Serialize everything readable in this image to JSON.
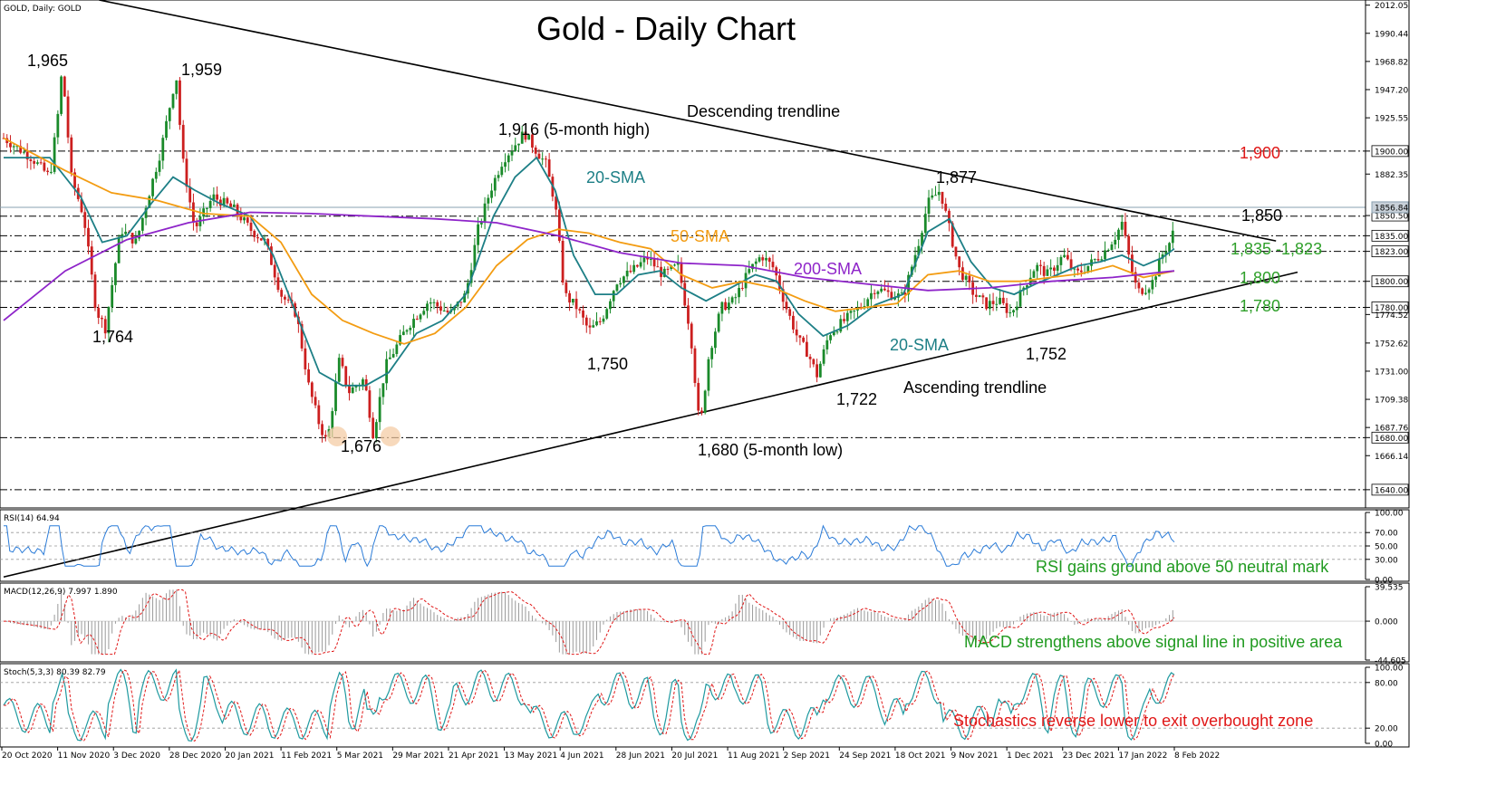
{
  "header": {
    "symbol_label": "GOLD, Daily:  GOLD",
    "title": "Gold - Daily Chart"
  },
  "chart_data": {
    "type": "candlestick",
    "title": "Gold - Daily Chart",
    "instrument": "GOLD",
    "timeframe": "Daily",
    "price_axis": {
      "ylim": [
        1626,
        2016
      ],
      "ticks": [
        "2012.05",
        "1990.44",
        "1968.82",
        "1947.20",
        "1925.55",
        "1900.00",
        "1882.35",
        "1850.50",
        "1835.00",
        "1823.00",
        "1800.00",
        "1780.00",
        "1774.52",
        "1752.62",
        "1731.00",
        "1709.38",
        "1687.76",
        "1680.00",
        "1666.14",
        "1640.00"
      ],
      "highlighted": [
        "1900.00",
        "1850.50",
        "1835.00",
        "1823.00",
        "1800.00",
        "1780.00",
        "1680.00",
        "1640.00"
      ],
      "current_price": "1856.84"
    },
    "x_axis_labels": [
      "20 Oct 2020",
      "11 Nov 2020",
      "3 Dec 2020",
      "28 Dec 2020",
      "20 Jan 2021",
      "11 Feb 2021",
      "5 Mar 2021",
      "29 Mar 2021",
      "21 Apr 2021",
      "13 May 2021",
      "4 Jun 2021",
      "28 Jun 2021",
      "20 Jul 2021",
      "11 Aug 2021",
      "2 Sep 2021",
      "24 Sep 2021",
      "18 Oct 2021",
      "9 Nov 2021",
      "1 Dec 2021",
      "23 Dec 2021",
      "17 Jan 2022",
      "8 Feb 2022"
    ],
    "price_path": [
      {
        "x": 0,
        "y": 1910
      },
      {
        "x": 18,
        "y": 1895
      },
      {
        "x": 30,
        "y": 1880
      },
      {
        "x": 36,
        "y": 1935
      },
      {
        "x": 38,
        "y": 1965
      },
      {
        "x": 44,
        "y": 1880
      },
      {
        "x": 52,
        "y": 1850
      },
      {
        "x": 60,
        "y": 1778
      },
      {
        "x": 66,
        "y": 1764
      },
      {
        "x": 76,
        "y": 1840
      },
      {
        "x": 86,
        "y": 1830
      },
      {
        "x": 95,
        "y": 1870
      },
      {
        "x": 102,
        "y": 1900
      },
      {
        "x": 112,
        "y": 1959
      },
      {
        "x": 116,
        "y": 1895
      },
      {
        "x": 124,
        "y": 1840
      },
      {
        "x": 136,
        "y": 1865
      },
      {
        "x": 150,
        "y": 1855
      },
      {
        "x": 160,
        "y": 1840
      },
      {
        "x": 170,
        "y": 1830
      },
      {
        "x": 180,
        "y": 1790
      },
      {
        "x": 190,
        "y": 1775
      },
      {
        "x": 198,
        "y": 1720
      },
      {
        "x": 205,
        "y": 1690
      },
      {
        "x": 210,
        "y": 1676
      },
      {
        "x": 218,
        "y": 1740
      },
      {
        "x": 224,
        "y": 1715
      },
      {
        "x": 234,
        "y": 1725
      },
      {
        "x": 240,
        "y": 1682
      },
      {
        "x": 248,
        "y": 1735
      },
      {
        "x": 262,
        "y": 1765
      },
      {
        "x": 276,
        "y": 1785
      },
      {
        "x": 290,
        "y": 1775
      },
      {
        "x": 300,
        "y": 1790
      },
      {
        "x": 308,
        "y": 1840
      },
      {
        "x": 316,
        "y": 1870
      },
      {
        "x": 324,
        "y": 1893
      },
      {
        "x": 332,
        "y": 1905
      },
      {
        "x": 338,
        "y": 1914
      },
      {
        "x": 346,
        "y": 1900
      },
      {
        "x": 352,
        "y": 1890
      },
      {
        "x": 358,
        "y": 1860
      },
      {
        "x": 364,
        "y": 1790
      },
      {
        "x": 372,
        "y": 1780
      },
      {
        "x": 380,
        "y": 1762
      },
      {
        "x": 388,
        "y": 1770
      },
      {
        "x": 398,
        "y": 1800
      },
      {
        "x": 408,
        "y": 1808
      },
      {
        "x": 418,
        "y": 1818
      },
      {
        "x": 428,
        "y": 1805
      },
      {
        "x": 438,
        "y": 1812
      },
      {
        "x": 446,
        "y": 1760
      },
      {
        "x": 452,
        "y": 1685
      },
      {
        "x": 458,
        "y": 1745
      },
      {
        "x": 466,
        "y": 1780
      },
      {
        "x": 474,
        "y": 1785
      },
      {
        "x": 484,
        "y": 1808
      },
      {
        "x": 492,
        "y": 1820
      },
      {
        "x": 500,
        "y": 1810
      },
      {
        "x": 508,
        "y": 1780
      },
      {
        "x": 516,
        "y": 1755
      },
      {
        "x": 522,
        "y": 1745
      },
      {
        "x": 528,
        "y": 1728
      },
      {
        "x": 536,
        "y": 1760
      },
      {
        "x": 546,
        "y": 1770
      },
      {
        "x": 556,
        "y": 1780
      },
      {
        "x": 566,
        "y": 1795
      },
      {
        "x": 576,
        "y": 1790
      },
      {
        "x": 584,
        "y": 1788
      },
      {
        "x": 594,
        "y": 1830
      },
      {
        "x": 600,
        "y": 1860
      },
      {
        "x": 608,
        "y": 1870
      },
      {
        "x": 614,
        "y": 1840
      },
      {
        "x": 620,
        "y": 1810
      },
      {
        "x": 630,
        "y": 1790
      },
      {
        "x": 638,
        "y": 1782
      },
      {
        "x": 646,
        "y": 1785
      },
      {
        "x": 654,
        "y": 1775
      },
      {
        "x": 662,
        "y": 1795
      },
      {
        "x": 670,
        "y": 1812
      },
      {
        "x": 678,
        "y": 1805
      },
      {
        "x": 688,
        "y": 1820
      },
      {
        "x": 696,
        "y": 1805
      },
      {
        "x": 704,
        "y": 1812
      },
      {
        "x": 714,
        "y": 1822
      },
      {
        "x": 722,
        "y": 1835
      },
      {
        "x": 726,
        "y": 1845
      },
      {
        "x": 732,
        "y": 1810
      },
      {
        "x": 736,
        "y": 1792
      },
      {
        "x": 742,
        "y": 1795
      },
      {
        "x": 746,
        "y": 1800
      },
      {
        "x": 752,
        "y": 1820
      },
      {
        "x": 757,
        "y": 1830
      },
      {
        "x": 760,
        "y": 1840
      }
    ],
    "series": [
      {
        "name": "20-SMA",
        "color": "#1d7f86",
        "points": [
          {
            "x": 0,
            "y": 1895
          },
          {
            "x": 30,
            "y": 1895
          },
          {
            "x": 50,
            "y": 1865
          },
          {
            "x": 64,
            "y": 1830
          },
          {
            "x": 80,
            "y": 1835
          },
          {
            "x": 96,
            "y": 1860
          },
          {
            "x": 110,
            "y": 1880
          },
          {
            "x": 124,
            "y": 1870
          },
          {
            "x": 140,
            "y": 1860
          },
          {
            "x": 160,
            "y": 1850
          },
          {
            "x": 175,
            "y": 1820
          },
          {
            "x": 190,
            "y": 1775
          },
          {
            "x": 205,
            "y": 1730
          },
          {
            "x": 220,
            "y": 1720
          },
          {
            "x": 235,
            "y": 1720
          },
          {
            "x": 250,
            "y": 1730
          },
          {
            "x": 268,
            "y": 1760
          },
          {
            "x": 285,
            "y": 1770
          },
          {
            "x": 300,
            "y": 1790
          },
          {
            "x": 318,
            "y": 1850
          },
          {
            "x": 332,
            "y": 1880
          },
          {
            "x": 346,
            "y": 1895
          },
          {
            "x": 358,
            "y": 1870
          },
          {
            "x": 370,
            "y": 1820
          },
          {
            "x": 384,
            "y": 1790
          },
          {
            "x": 398,
            "y": 1790
          },
          {
            "x": 412,
            "y": 1805
          },
          {
            "x": 426,
            "y": 1808
          },
          {
            "x": 440,
            "y": 1795
          },
          {
            "x": 456,
            "y": 1785
          },
          {
            "x": 472,
            "y": 1795
          },
          {
            "x": 488,
            "y": 1805
          },
          {
            "x": 502,
            "y": 1800
          },
          {
            "x": 516,
            "y": 1775
          },
          {
            "x": 532,
            "y": 1758
          },
          {
            "x": 548,
            "y": 1766
          },
          {
            "x": 566,
            "y": 1782
          },
          {
            "x": 584,
            "y": 1790
          },
          {
            "x": 600,
            "y": 1838
          },
          {
            "x": 614,
            "y": 1848
          },
          {
            "x": 628,
            "y": 1815
          },
          {
            "x": 642,
            "y": 1795
          },
          {
            "x": 656,
            "y": 1790
          },
          {
            "x": 670,
            "y": 1798
          },
          {
            "x": 684,
            "y": 1805
          },
          {
            "x": 698,
            "y": 1812
          },
          {
            "x": 712,
            "y": 1815
          },
          {
            "x": 726,
            "y": 1820
          },
          {
            "x": 740,
            "y": 1812
          },
          {
            "x": 752,
            "y": 1818
          },
          {
            "x": 760,
            "y": 1825
          }
        ]
      },
      {
        "name": "50-SMA",
        "color": "#f39c12",
        "points": [
          {
            "x": 0,
            "y": 1910
          },
          {
            "x": 40,
            "y": 1885
          },
          {
            "x": 70,
            "y": 1868
          },
          {
            "x": 100,
            "y": 1862
          },
          {
            "x": 130,
            "y": 1852
          },
          {
            "x": 160,
            "y": 1850
          },
          {
            "x": 180,
            "y": 1830
          },
          {
            "x": 200,
            "y": 1790
          },
          {
            "x": 220,
            "y": 1770
          },
          {
            "x": 240,
            "y": 1760
          },
          {
            "x": 260,
            "y": 1752
          },
          {
            "x": 280,
            "y": 1760
          },
          {
            "x": 300,
            "y": 1780
          },
          {
            "x": 320,
            "y": 1812
          },
          {
            "x": 340,
            "y": 1832
          },
          {
            "x": 360,
            "y": 1840
          },
          {
            "x": 380,
            "y": 1837
          },
          {
            "x": 400,
            "y": 1830
          },
          {
            "x": 420,
            "y": 1825
          },
          {
            "x": 440,
            "y": 1805
          },
          {
            "x": 460,
            "y": 1795
          },
          {
            "x": 480,
            "y": 1800
          },
          {
            "x": 500,
            "y": 1795
          },
          {
            "x": 520,
            "y": 1785
          },
          {
            "x": 540,
            "y": 1777
          },
          {
            "x": 560,
            "y": 1780
          },
          {
            "x": 580,
            "y": 1783
          },
          {
            "x": 600,
            "y": 1805
          },
          {
            "x": 620,
            "y": 1808
          },
          {
            "x": 640,
            "y": 1800
          },
          {
            "x": 660,
            "y": 1800
          },
          {
            "x": 680,
            "y": 1803
          },
          {
            "x": 700,
            "y": 1806
          },
          {
            "x": 720,
            "y": 1812
          },
          {
            "x": 740,
            "y": 1803
          },
          {
            "x": 760,
            "y": 1808
          }
        ]
      },
      {
        "name": "200-SMA",
        "color": "#8e24c9",
        "points": [
          {
            "x": 0,
            "y": 1770
          },
          {
            "x": 40,
            "y": 1808
          },
          {
            "x": 80,
            "y": 1832
          },
          {
            "x": 120,
            "y": 1845
          },
          {
            "x": 160,
            "y": 1853
          },
          {
            "x": 200,
            "y": 1852
          },
          {
            "x": 240,
            "y": 1850
          },
          {
            "x": 280,
            "y": 1848
          },
          {
            "x": 320,
            "y": 1845
          },
          {
            "x": 360,
            "y": 1835
          },
          {
            "x": 400,
            "y": 1822
          },
          {
            "x": 440,
            "y": 1814
          },
          {
            "x": 480,
            "y": 1812
          },
          {
            "x": 520,
            "y": 1803
          },
          {
            "x": 560,
            "y": 1798
          },
          {
            "x": 600,
            "y": 1793
          },
          {
            "x": 640,
            "y": 1795
          },
          {
            "x": 680,
            "y": 1800
          },
          {
            "x": 720,
            "y": 1803
          },
          {
            "x": 760,
            "y": 1808
          }
        ]
      }
    ],
    "trendlines": [
      {
        "name": "Descending trendline",
        "from": {
          "x": 62,
          "y": 2016
        },
        "to": {
          "x": 826,
          "y": 1831
        }
      },
      {
        "name": "Ascending trendline",
        "from": {
          "x": 0,
          "y": 1573
        },
        "to": {
          "x": 840,
          "y": 1807
        }
      }
    ],
    "levels": [
      1900,
      1850,
      1835,
      1823,
      1800,
      1780,
      1680,
      1640
    ],
    "annotations": {
      "high_1965": "1,965",
      "high_1959": "1,959",
      "low_1764": "1,764",
      "high_1916": "1,916 (5-month high)",
      "desc_trend": "Descending trendline",
      "sma20_a": "20-SMA",
      "sma50": "50-SMA",
      "sma200": "200-SMA",
      "sma20_b": "20-SMA",
      "low_1750": "1,750",
      "low_1676": "1,676",
      "low_1680": "1,680 (5-month low)",
      "low_1722": "1,722",
      "asc_trend": "Ascending trendline",
      "low_1752": "1,752",
      "high_1877": "1,877",
      "lvl_1900": "1,900",
      "lvl_1850": "1,850",
      "lvl_1835": "1,835 -1,823",
      "lvl_1800": "1,800",
      "lvl_1780": "1,780"
    },
    "indicators": {
      "rsi": {
        "label": "RSI(14) 64.94",
        "ticks": [
          "100.00",
          "70.00",
          "50.00",
          "30.00",
          "0.00"
        ],
        "note": "RSI gains ground above 50 neutral mark",
        "current": 64.94
      },
      "macd": {
        "label": "MACD(12,26,9) 7.997 1.890",
        "ticks": [
          "39.535",
          "0.000",
          "-44.605"
        ],
        "note": "MACD strengthens above signal line in positive area",
        "macd": 7.997,
        "signal": 1.89
      },
      "stoch": {
        "label": "Stoch(5,3,3) 80.39 82.79",
        "ticks": [
          "100.00",
          "80.00",
          "20.00",
          "0.00"
        ],
        "note": "Stochastics reverse lower to exit overbought zone",
        "k": 80.39,
        "d": 82.79
      }
    },
    "colors": {
      "bull": "#1a8a2a",
      "bear": "#cc1f1f",
      "level_red": "#e01818",
      "level_green": "#2fa02a",
      "note_green": "#1f9a1f",
      "note_red": "#e01818",
      "rsi_line": "#2a7bd8",
      "stoch_k": "#1f9aa0",
      "stoch_d": "#e01818",
      "macd_signal": "#e01818",
      "macd_hist": "#9a9a9a"
    }
  }
}
